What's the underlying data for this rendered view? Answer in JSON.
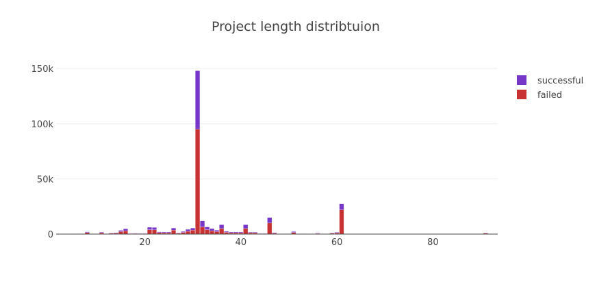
{
  "chart_data": {
    "type": "bar",
    "barmode": "stack",
    "title": "Project length distribtuion",
    "xlabel": "",
    "ylabel": "",
    "xlim": [
      1.5,
      93.5
    ],
    "ylim": [
      0,
      160000
    ],
    "xticks": [
      20,
      40,
      60,
      80
    ],
    "xtick_labels": [
      "20",
      "40",
      "60",
      "80"
    ],
    "yticks": [
      0,
      50000,
      100000,
      150000
    ],
    "ytick_labels": [
      "0",
      "50k",
      "100k",
      "150k"
    ],
    "grid": true,
    "legend_position": "top-right",
    "x": [
      2,
      3,
      4,
      5,
      6,
      7,
      8,
      9,
      10,
      11,
      12,
      13,
      14,
      15,
      16,
      17,
      18,
      19,
      20,
      21,
      22,
      23,
      24,
      25,
      26,
      27,
      28,
      29,
      30,
      31,
      32,
      33,
      34,
      35,
      36,
      37,
      38,
      39,
      40,
      41,
      42,
      43,
      44,
      45,
      46,
      47,
      48,
      49,
      50,
      51,
      52,
      53,
      54,
      55,
      56,
      57,
      58,
      59,
      60,
      61,
      62,
      63,
      64,
      65,
      66,
      67,
      68,
      69,
      70,
      71,
      72,
      73,
      74,
      75,
      76,
      77,
      78,
      79,
      80,
      81,
      82,
      83,
      84,
      85,
      86,
      87,
      88,
      89,
      90,
      91,
      92,
      93
    ],
    "series": [
      {
        "name": "failed",
        "color": "#c83232",
        "values": [
          200,
          200,
          200,
          200,
          300,
          300,
          1400,
          400,
          300,
          1200,
          300,
          700,
          800,
          2200,
          3000,
          500,
          600,
          500,
          500,
          4000,
          3800,
          1300,
          1200,
          1200,
          3500,
          800,
          1500,
          2500,
          3500,
          95000,
          6500,
          4000,
          3000,
          2200,
          5000,
          1600,
          1200,
          1200,
          1200,
          5000,
          1200,
          1200,
          500,
          500,
          10000,
          900,
          400,
          400,
          300,
          1500,
          400,
          300,
          200,
          200,
          600,
          200,
          200,
          800,
          1000,
          22000,
          200,
          200,
          200,
          200,
          200,
          200,
          200,
          200,
          200,
          200,
          200,
          200,
          200,
          200,
          200,
          200,
          200,
          200,
          200,
          200,
          200,
          200,
          200,
          200,
          200,
          200,
          200,
          200,
          200,
          800,
          200,
          200
        ]
      },
      {
        "name": "successful",
        "color": "#7637c8",
        "values": [
          100,
          100,
          100,
          100,
          200,
          200,
          600,
          200,
          200,
          600,
          200,
          400,
          500,
          1200,
          1800,
          300,
          300,
          300,
          300,
          2200,
          2200,
          700,
          700,
          700,
          2000,
          400,
          900,
          1800,
          2000,
          53000,
          5500,
          2500,
          2000,
          1300,
          3500,
          900,
          700,
          700,
          700,
          3500,
          600,
          600,
          300,
          300,
          5000,
          500,
          200,
          200,
          200,
          800,
          200,
          200,
          100,
          100,
          400,
          100,
          100,
          400,
          600,
          5500,
          100,
          100,
          100,
          100,
          100,
          100,
          100,
          100,
          100,
          100,
          100,
          100,
          100,
          100,
          100,
          100,
          100,
          100,
          100,
          100,
          100,
          100,
          100,
          100,
          100,
          100,
          100,
          100,
          100,
          400,
          100,
          100
        ]
      }
    ]
  }
}
